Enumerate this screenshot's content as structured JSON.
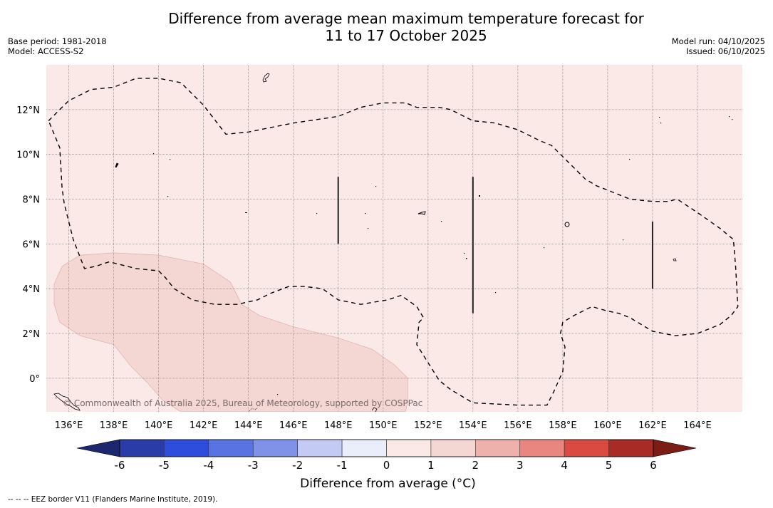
{
  "header": {
    "title_line1": "Difference from average mean maximum temperature forecast for",
    "title_line2": "11 to 17 October 2025",
    "base_period": "Base period: 1981-2018",
    "model": "Model: ACCESS-S2",
    "model_run": "Model run: 04/10/2025",
    "issued": "Issued: 06/10/2025"
  },
  "map": {
    "lon_range": [
      135,
      166
    ],
    "lat_range": [
      -1.5,
      14
    ],
    "lon_ticks": [
      136,
      138,
      140,
      142,
      144,
      146,
      148,
      150,
      152,
      154,
      156,
      158,
      160,
      162,
      164
    ],
    "lon_tick_labels": [
      "136°E",
      "138°E",
      "140°E",
      "142°E",
      "144°E",
      "146°E",
      "148°E",
      "150°E",
      "152°E",
      "154°E",
      "156°E",
      "158°E",
      "160°E",
      "162°E",
      "164°E"
    ],
    "lat_ticks": [
      0,
      2,
      4,
      6,
      8,
      10,
      12
    ],
    "lat_tick_labels": [
      "0°",
      "2°N",
      "4°N",
      "6°N",
      "8°N",
      "10°N",
      "12°N"
    ],
    "background_category": "0 to 1",
    "background_color": "#fbe9e7",
    "anomaly_regions": [
      {
        "category": "1 to 2",
        "color": "#f4d6d3",
        "outline": [
          [
            135.35,
            4.2
          ],
          [
            135.7,
            5.0
          ],
          [
            136.5,
            5.5
          ],
          [
            138,
            5.6
          ],
          [
            140,
            5.5
          ],
          [
            142,
            5.1
          ],
          [
            143.2,
            4.3
          ],
          [
            143.7,
            3.3
          ],
          [
            144.5,
            2.8
          ],
          [
            146,
            2.3
          ],
          [
            148,
            1.8
          ],
          [
            149.5,
            1.3
          ],
          [
            150.5,
            0.6
          ],
          [
            151.1,
            0.0
          ],
          [
            151.1,
            -1.0
          ],
          [
            151,
            -1.5
          ],
          [
            141,
            -1.5
          ],
          [
            140.2,
            -1.0
          ],
          [
            139.5,
            -0.2
          ],
          [
            138.8,
            0.5
          ],
          [
            138,
            1.5
          ],
          [
            136.5,
            1.9
          ],
          [
            135.6,
            2.5
          ],
          [
            135.35,
            3.3
          ]
        ]
      }
    ],
    "eez_border": [
      [
        135.1,
        11.5
      ],
      [
        135.6,
        12.0
      ],
      [
        136,
        12.4
      ],
      [
        137,
        12.9
      ],
      [
        138,
        13.0
      ],
      [
        139,
        13.4
      ],
      [
        140,
        13.4
      ],
      [
        141,
        13.2
      ],
      [
        142,
        12.2
      ],
      [
        143,
        10.9
      ],
      [
        144,
        11.0
      ],
      [
        146,
        11.4
      ],
      [
        148,
        11.7
      ],
      [
        148.5,
        11.9
      ],
      [
        149,
        12.1
      ],
      [
        150,
        12.3
      ],
      [
        151,
        12.3
      ],
      [
        151.5,
        12.1
      ],
      [
        152.5,
        12.1
      ],
      [
        153,
        12.0
      ],
      [
        154,
        11.5
      ],
      [
        155,
        11.4
      ],
      [
        156,
        11.1
      ],
      [
        157,
        10.6
      ],
      [
        157.5,
        10.4
      ],
      [
        158,
        9.9
      ],
      [
        159,
        8.9
      ],
      [
        159.5,
        8.6
      ],
      [
        160,
        8.4
      ],
      [
        161,
        8.0
      ],
      [
        162,
        7.9
      ],
      [
        162.7,
        7.9
      ],
      [
        163.1,
        8.0
      ],
      [
        164,
        7.4
      ],
      [
        165,
        6.7
      ],
      [
        165.6,
        6.2
      ],
      [
        165.7,
        5.0
      ],
      [
        165.8,
        3.2
      ],
      [
        165.5,
        2.8
      ],
      [
        165,
        2.4
      ],
      [
        164,
        2.0
      ],
      [
        163,
        1.9
      ],
      [
        162,
        2.1
      ],
      [
        161,
        2.7
      ],
      [
        160.5,
        2.9
      ],
      [
        160,
        3.0
      ],
      [
        159.3,
        3.2
      ],
      [
        158.5,
        2.8
      ],
      [
        158,
        2.5
      ],
      [
        157.9,
        2.0
      ],
      [
        158.1,
        1.4
      ],
      [
        158,
        0.3
      ],
      [
        157.6,
        -0.6
      ],
      [
        157.3,
        -1.2
      ],
      [
        157,
        -1.2
      ],
      [
        156,
        -1.2
      ],
      [
        154,
        -1.1
      ],
      [
        153,
        -0.5
      ],
      [
        152.5,
        -0.1
      ],
      [
        151.5,
        1.5
      ],
      [
        151.6,
        2.5
      ],
      [
        151.8,
        2.7
      ],
      [
        151.5,
        3.2
      ],
      [
        150.8,
        3.7
      ],
      [
        150.2,
        3.5
      ],
      [
        149,
        3.3
      ],
      [
        148,
        3.5
      ],
      [
        147.3,
        4.0
      ],
      [
        146.5,
        4.1
      ],
      [
        145.8,
        4.1
      ],
      [
        145,
        3.8
      ],
      [
        144.4,
        3.5
      ],
      [
        143.5,
        3.3
      ],
      [
        142.5,
        3.3
      ],
      [
        141.5,
        3.5
      ],
      [
        140.7,
        4.0
      ],
      [
        140.3,
        4.5
      ],
      [
        140,
        4.8
      ],
      [
        139,
        4.9
      ],
      [
        137.8,
        5.2
      ],
      [
        137.2,
        5.0
      ],
      [
        136.7,
        4.9
      ],
      [
        136.2,
        6.2
      ],
      [
        135.8,
        7.8
      ],
      [
        135.7,
        8.5
      ],
      [
        135.6,
        10.3
      ],
      [
        135.1,
        11.5
      ]
    ],
    "dark_lines": [
      {
        "lon": 148,
        "lat_from": 6.0,
        "lat_to": 9.0
      },
      {
        "lon": 154,
        "lat_from": 2.9,
        "lat_to": 9.0
      },
      {
        "lon": 162,
        "lat_from": 4.0,
        "lat_to": 7.0
      }
    ],
    "copyright": "© Commonwealth of Australia 2025, Bureau of Meteorology, supported by COSPPac"
  },
  "colorbar": {
    "label": "Difference from average (°C)",
    "boundaries": [
      -6,
      -5,
      -4,
      -3,
      -2,
      -1,
      0,
      1,
      2,
      3,
      4,
      5,
      6
    ],
    "tick_labels": [
      "-6",
      "-5",
      "-4",
      "-3",
      "-2",
      "-1",
      "0",
      "1",
      "2",
      "3",
      "4",
      "5",
      "6"
    ],
    "colors": [
      "#2a3ca8",
      "#2e4ddd",
      "#5a73e2",
      "#8092e8",
      "#c3caf3",
      "#eaedfa",
      "#fbe9e7",
      "#f4d6d3",
      "#eeb1ab",
      "#e8867f",
      "#db4a40",
      "#a92b25"
    ],
    "extend_min_color": "#1c2770",
    "extend_max_color": "#7b1c16"
  },
  "footnote": "--  --  -- EEZ border V11 (Flanders Marine Institute, 2019)."
}
